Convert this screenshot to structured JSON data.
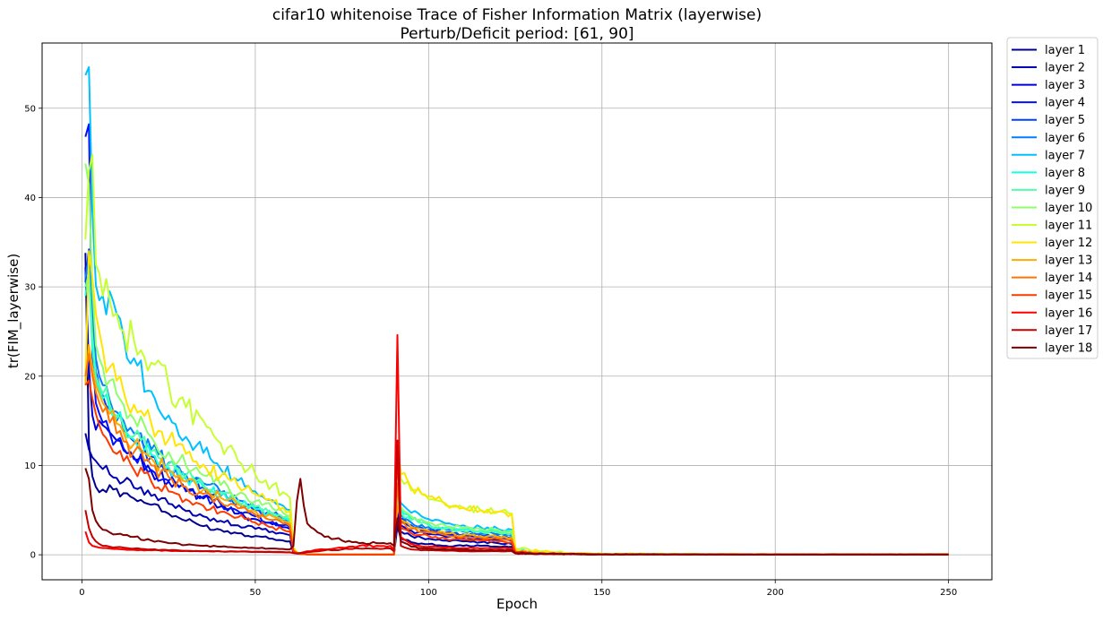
{
  "chart_data": {
    "type": "line",
    "title": "cifar10 whitenoise Trace of Fisher Information Matrix (layerwise)",
    "subtitle": "Perturb/Deficit period: [61, 90]",
    "xlabel": "Epoch",
    "ylabel": "tr(FIM_layerwise)",
    "xlim": [
      -11.5,
      262.5
    ],
    "ylim": [
      -2.8,
      57.3
    ],
    "xticks": [
      0,
      50,
      100,
      150,
      200,
      250
    ],
    "yticks": [
      0,
      10,
      20,
      30,
      40,
      50
    ],
    "grid": true,
    "legend_position": "outside-top-right",
    "x_key_epochs": [
      1,
      2,
      3,
      4,
      5,
      6,
      8,
      10,
      12,
      15,
      20,
      25,
      30,
      35,
      40,
      45,
      50,
      55,
      58,
      60,
      61,
      62,
      63,
      65,
      70,
      75,
      80,
      85,
      89,
      90,
      91,
      92,
      95,
      100,
      105,
      110,
      115,
      120,
      124,
      125,
      130,
      140,
      150,
      200,
      250
    ],
    "series": [
      {
        "name": "layer 1",
        "color": "#00008f",
        "values": [
          33.8,
          12.5,
          8.8,
          7.6,
          7.0,
          7.3,
          7.8,
          7.4,
          6.9,
          6.3,
          5.6,
          4.6,
          3.8,
          3.2,
          2.8,
          2.4,
          2.1,
          1.8,
          1.6,
          1.5,
          0.25,
          0.15,
          0.1,
          0.05,
          0.02,
          0.02,
          0.02,
          0.02,
          0.02,
          0.02,
          3.2,
          1.8,
          1.4,
          1.2,
          1.0,
          1.0,
          1.0,
          0.9,
          0.9,
          0.25,
          0.15,
          0.1,
          0.05,
          0.03,
          0.03
        ]
      },
      {
        "name": "layer 2",
        "color": "#0000b5",
        "values": [
          13.6,
          11.8,
          10.9,
          10.5,
          10.0,
          9.6,
          9.0,
          8.6,
          8.2,
          7.5,
          6.6,
          5.7,
          4.9,
          4.3,
          3.8,
          3.3,
          2.9,
          2.6,
          2.4,
          2.2,
          0.3,
          0.2,
          0.1,
          0.05,
          0.02,
          0.02,
          0.02,
          0.02,
          0.02,
          0.02,
          4.6,
          2.6,
          2.1,
          1.8,
          1.6,
          1.5,
          1.4,
          1.3,
          1.2,
          0.3,
          0.15,
          0.1,
          0.05,
          0.03,
          0.03
        ]
      },
      {
        "name": "layer 3",
        "color": "#0000da",
        "values": [
          32.2,
          21.0,
          15.6,
          14.0,
          15.0,
          14.5,
          13.7,
          12.8,
          11.7,
          10.7,
          9.3,
          8.2,
          7.1,
          6.3,
          5.4,
          4.6,
          4.0,
          3.4,
          3.1,
          2.9,
          0.4,
          0.2,
          0.1,
          0.05,
          0.02,
          0.02,
          0.02,
          0.02,
          0.02,
          0.02,
          4.1,
          3.3,
          2.7,
          2.3,
          2.0,
          1.9,
          1.8,
          1.7,
          1.6,
          0.4,
          0.2,
          0.1,
          0.05,
          0.03,
          0.03
        ]
      },
      {
        "name": "layer 4",
        "color": "#0010ff",
        "values": [
          46.8,
          48.2,
          22.5,
          17.0,
          15.8,
          14.8,
          13.7,
          12.8,
          11.9,
          10.9,
          9.5,
          8.3,
          7.2,
          6.5,
          5.7,
          4.9,
          4.3,
          3.7,
          3.3,
          3.1,
          0.4,
          0.2,
          0.1,
          0.05,
          0.02,
          0.02,
          0.02,
          0.02,
          0.02,
          0.02,
          5.0,
          3.8,
          3.1,
          2.6,
          2.3,
          2.1,
          2.0,
          1.9,
          1.8,
          0.4,
          0.2,
          0.1,
          0.05,
          0.03,
          0.03
        ]
      },
      {
        "name": "layer 5",
        "color": "#0040ff",
        "values": [
          30.5,
          34.2,
          25.0,
          20.5,
          19.0,
          17.8,
          16.3,
          15.0,
          14.0,
          12.7,
          11.0,
          9.7,
          8.5,
          7.6,
          6.6,
          5.8,
          5.0,
          4.4,
          3.9,
          3.6,
          0.5,
          0.2,
          0.1,
          0.05,
          0.02,
          0.02,
          0.02,
          0.02,
          0.02,
          0.02,
          5.5,
          4.1,
          3.3,
          2.8,
          2.5,
          2.3,
          2.2,
          2.1,
          2.0,
          0.5,
          0.2,
          0.1,
          0.05,
          0.03,
          0.03
        ]
      },
      {
        "name": "layer 6",
        "color": "#0080ff",
        "values": [
          31.0,
          33.5,
          27.5,
          22.0,
          20.0,
          19.0,
          17.3,
          16.0,
          15.0,
          13.6,
          11.8,
          10.3,
          9.0,
          8.0,
          7.0,
          6.1,
          5.3,
          4.6,
          4.1,
          3.8,
          0.5,
          0.3,
          0.1,
          0.05,
          0.02,
          0.02,
          0.02,
          0.02,
          0.02,
          0.02,
          6.0,
          4.5,
          3.6,
          3.1,
          2.8,
          2.6,
          2.4,
          2.3,
          2.2,
          0.5,
          0.2,
          0.1,
          0.05,
          0.03,
          0.03
        ]
      },
      {
        "name": "layer 7",
        "color": "#00c0ff",
        "values": [
          53.7,
          54.6,
          38.5,
          30.2,
          28.5,
          29.0,
          29.5,
          27.0,
          24.5,
          22.0,
          18.3,
          15.6,
          13.2,
          11.4,
          9.6,
          8.3,
          7.1,
          6.1,
          5.5,
          5.0,
          0.8,
          0.3,
          0.1,
          0.05,
          0.02,
          0.02,
          0.02,
          0.02,
          0.02,
          0.02,
          6.8,
          5.8,
          4.7,
          4.0,
          3.5,
          3.3,
          3.1,
          2.9,
          2.8,
          0.6,
          0.3,
          0.1,
          0.05,
          0.03,
          0.03
        ]
      },
      {
        "name": "layer 8",
        "color": "#16ffe1",
        "values": [
          29.0,
          32.0,
          23.0,
          19.5,
          18.5,
          17.5,
          16.3,
          15.2,
          14.2,
          12.9,
          11.2,
          9.8,
          8.6,
          7.6,
          6.7,
          5.8,
          5.1,
          4.4,
          4.0,
          3.7,
          0.5,
          0.2,
          0.1,
          0.05,
          0.02,
          0.02,
          0.02,
          0.02,
          0.02,
          0.02,
          6.4,
          5.0,
          4.0,
          3.4,
          3.0,
          2.8,
          2.7,
          2.6,
          2.5,
          0.5,
          0.2,
          0.1,
          0.05,
          0.03,
          0.03
        ]
      },
      {
        "name": "layer 9",
        "color": "#50ffa7",
        "values": [
          30.0,
          31.5,
          24.5,
          20.0,
          19.0,
          18.0,
          16.8,
          15.6,
          14.6,
          13.3,
          11.6,
          10.2,
          8.9,
          7.9,
          7.0,
          6.1,
          5.4,
          4.7,
          4.2,
          3.9,
          0.5,
          0.2,
          0.1,
          0.05,
          0.02,
          0.02,
          0.02,
          0.02,
          0.02,
          0.02,
          6.2,
          4.8,
          3.9,
          3.3,
          2.9,
          2.7,
          2.6,
          2.5,
          2.4,
          0.5,
          0.2,
          0.1,
          0.05,
          0.03,
          0.03
        ]
      },
      {
        "name": "layer 10",
        "color": "#8cff6a",
        "values": [
          43.8,
          41.5,
          30.0,
          23.5,
          22.0,
          21.0,
          19.5,
          18.0,
          16.8,
          15.2,
          13.2,
          11.5,
          10.0,
          8.9,
          7.8,
          6.8,
          6.0,
          5.2,
          4.7,
          4.3,
          0.6,
          0.2,
          0.1,
          0.05,
          0.02,
          0.02,
          0.02,
          0.02,
          0.02,
          0.02,
          7.0,
          5.3,
          4.3,
          3.6,
          3.2,
          3.0,
          2.9,
          2.8,
          2.7,
          0.6,
          0.2,
          0.1,
          0.05,
          0.03,
          0.03
        ]
      },
      {
        "name": "layer 11",
        "color": "#c6ff31",
        "values": [
          35.3,
          43.0,
          44.8,
          32.5,
          31.5,
          29.0,
          28.5,
          27.0,
          25.0,
          24.0,
          21.5,
          19.0,
          16.5,
          15.0,
          12.5,
          10.5,
          9.0,
          7.8,
          7.0,
          6.4,
          0.8,
          0.3,
          0.1,
          0.05,
          0.02,
          0.02,
          0.02,
          0.02,
          0.02,
          0.02,
          11.0,
          8.5,
          7.2,
          6.2,
          5.5,
          5.2,
          5.0,
          4.8,
          4.6,
          0.8,
          0.4,
          0.2,
          0.1,
          0.05,
          0.05
        ]
      },
      {
        "name": "layer 12",
        "color": "#ffe500",
        "values": [
          19.5,
          34.0,
          31.0,
          27.0,
          25.0,
          23.0,
          21.0,
          19.5,
          18.3,
          16.8,
          14.7,
          12.9,
          11.3,
          10.1,
          8.8,
          7.7,
          6.8,
          5.9,
          5.3,
          4.9,
          0.7,
          0.3,
          0.1,
          0.05,
          0.02,
          0.02,
          0.02,
          0.02,
          0.02,
          0.02,
          12.5,
          9.0,
          7.5,
          6.5,
          5.7,
          5.3,
          5.0,
          4.8,
          4.6,
          0.7,
          0.4,
          0.2,
          0.1,
          0.05,
          0.05
        ]
      },
      {
        "name": "layer 13",
        "color": "#ffab00",
        "values": [
          19.0,
          23.5,
          21.0,
          19.0,
          18.0,
          17.0,
          15.8,
          14.7,
          13.7,
          12.4,
          10.8,
          9.4,
          8.2,
          7.3,
          6.4,
          5.6,
          4.9,
          4.3,
          3.8,
          3.5,
          0.5,
          0.2,
          0.1,
          0.05,
          0.02,
          0.02,
          0.02,
          0.02,
          0.02,
          0.02,
          5.5,
          3.9,
          3.1,
          2.7,
          2.4,
          2.2,
          2.1,
          2.0,
          1.9,
          0.4,
          0.2,
          0.1,
          0.05,
          0.03,
          0.03
        ]
      },
      {
        "name": "layer 14",
        "color": "#ff7400",
        "values": [
          20.0,
          22.5,
          20.0,
          18.2,
          17.0,
          16.0,
          14.8,
          13.6,
          12.7,
          11.5,
          10.0,
          8.7,
          7.6,
          6.8,
          5.9,
          5.2,
          4.5,
          3.9,
          3.5,
          3.2,
          0.5,
          0.2,
          0.1,
          0.05,
          0.02,
          0.02,
          0.02,
          0.02,
          0.02,
          0.02,
          8.0,
          3.6,
          2.9,
          2.5,
          2.2,
          2.0,
          1.9,
          1.8,
          1.7,
          0.4,
          0.2,
          0.1,
          0.05,
          0.03,
          0.03
        ]
      },
      {
        "name": "layer 15",
        "color": "#ff3a00",
        "values": [
          19.0,
          19.5,
          17.5,
          15.8,
          14.5,
          13.5,
          12.3,
          11.3,
          10.5,
          9.5,
          8.2,
          7.1,
          6.2,
          5.5,
          4.8,
          4.2,
          3.6,
          3.1,
          2.8,
          2.6,
          0.4,
          0.2,
          0.1,
          0.05,
          0.02,
          0.02,
          0.02,
          0.02,
          0.02,
          0.02,
          11.0,
          3.0,
          2.4,
          2.1,
          1.8,
          1.7,
          1.6,
          1.5,
          1.4,
          0.3,
          0.15,
          0.1,
          0.05,
          0.03,
          0.03
        ]
      },
      {
        "name": "layer 16",
        "color": "#ff0000",
        "values": [
          2.6,
          1.4,
          1.0,
          0.9,
          0.8,
          0.75,
          0.7,
          0.65,
          0.6,
          0.55,
          0.5,
          0.45,
          0.42,
          0.4,
          0.38,
          0.36,
          0.34,
          0.32,
          0.3,
          0.28,
          0.2,
          0.15,
          0.2,
          0.4,
          0.6,
          0.8,
          1.0,
          1.0,
          1.0,
          0.5,
          24.6,
          2.0,
          1.2,
          0.9,
          0.8,
          0.75,
          0.7,
          0.7,
          0.7,
          0.2,
          0.12,
          0.08,
          0.05,
          0.03,
          0.03
        ]
      },
      {
        "name": "layer 17",
        "color": "#c40000",
        "values": [
          5.0,
          3.0,
          2.0,
          1.5,
          1.2,
          1.0,
          0.9,
          0.85,
          0.8,
          0.7,
          0.6,
          0.5,
          0.45,
          0.4,
          0.38,
          0.35,
          0.33,
          0.3,
          0.28,
          0.27,
          0.2,
          0.15,
          0.2,
          0.3,
          0.5,
          0.6,
          0.7,
          0.7,
          0.7,
          0.4,
          12.8,
          1.0,
          0.6,
          0.5,
          0.45,
          0.4,
          0.4,
          0.4,
          0.4,
          0.15,
          0.1,
          0.08,
          0.05,
          0.03,
          0.03
        ]
      },
      {
        "name": "layer 18",
        "color": "#7f0000",
        "values": [
          9.7,
          8.5,
          5.0,
          3.8,
          3.2,
          2.8,
          2.5,
          2.3,
          2.2,
          2.0,
          1.6,
          1.3,
          1.1,
          1.0,
          0.9,
          0.8,
          0.75,
          0.7,
          0.65,
          0.6,
          1.0,
          6.0,
          8.5,
          3.5,
          2.0,
          1.6,
          1.3,
          1.3,
          1.3,
          1.0,
          4.1,
          1.5,
          0.9,
          0.7,
          0.6,
          0.55,
          0.5,
          0.5,
          0.5,
          0.2,
          0.12,
          0.08,
          0.05,
          0.03,
          0.03
        ]
      }
    ]
  }
}
